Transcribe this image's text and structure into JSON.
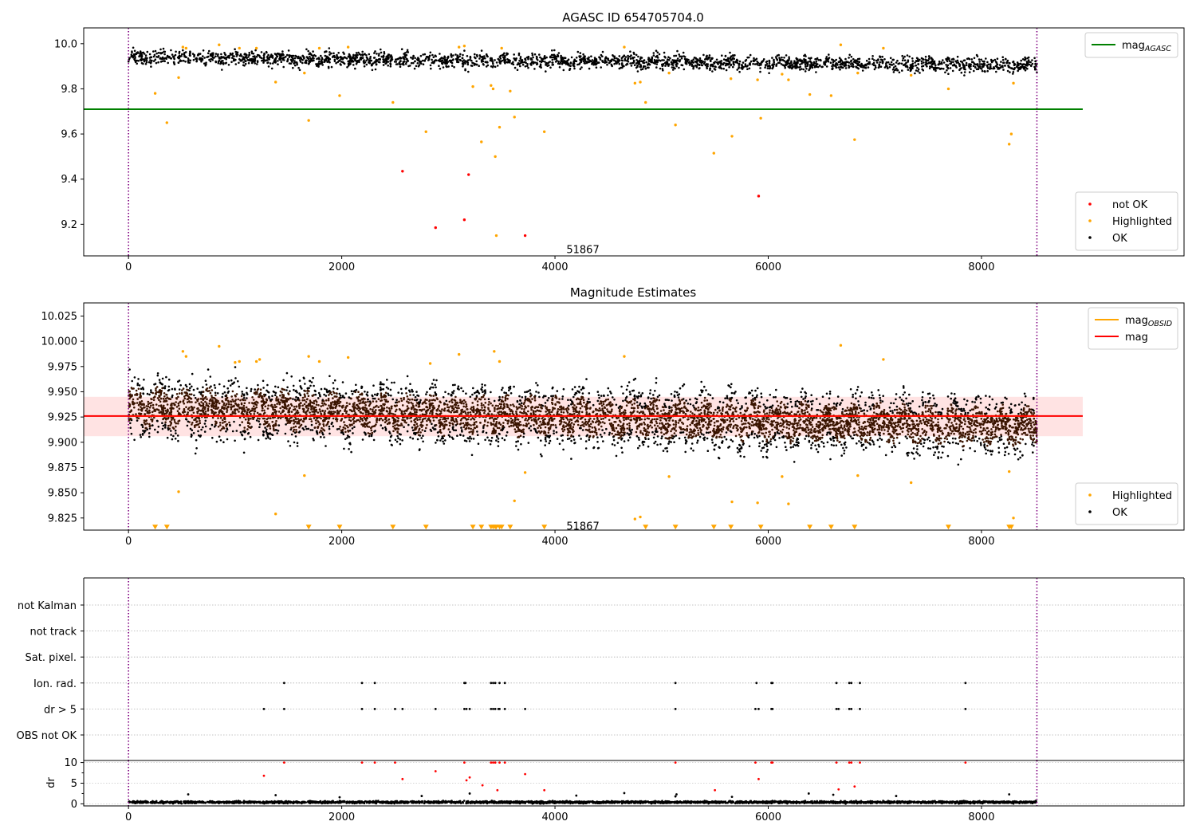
{
  "chart_data": [
    {
      "type": "scatter",
      "title": "AGASC ID 654705704.0",
      "xlabel": "",
      "ylabel": "",
      "xlim": [
        -420,
        9900
      ],
      "ylim": [
        9.06,
        10.07
      ],
      "xticks": [
        0,
        2000,
        4000,
        6000,
        8000
      ],
      "yticks": [
        9.2,
        9.4,
        9.6,
        9.8,
        10.0
      ],
      "ytick_decimals": 1,
      "vlines": [
        0,
        8520
      ],
      "annotation": {
        "text": "51867",
        "x": 4000,
        "y": 9.09
      },
      "hline": {
        "name": "mag",
        "label_sub": "AGASC",
        "y": 9.71,
        "x_range": [
          -420,
          8950
        ],
        "color": "#008000"
      },
      "legend_upper": {
        "position": "upper right",
        "entries": [
          {
            "label": "mag",
            "sub": "AGASC",
            "color": "#008000",
            "kind": "line"
          }
        ]
      },
      "legend_lower": {
        "position": "lower right",
        "entries": [
          {
            "label": "not OK",
            "color": "#ff0000",
            "kind": "dot"
          },
          {
            "label": "Highlighted",
            "color": "#ffa500",
            "kind": "dot"
          },
          {
            "label": "OK",
            "color": "#000000",
            "kind": "dot"
          }
        ]
      },
      "ok_band": {
        "x_range": [
          0,
          8520
        ],
        "trend_start": 9.94,
        "trend_end": 9.905,
        "spread": 0.055,
        "n": 2600,
        "color": "#000000"
      },
      "series": [
        {
          "name": "Highlighted",
          "color": "#ffa500",
          "x": [
            250,
            360,
            470,
            510,
            540,
            850,
            1040,
            1200,
            1380,
            1650,
            1690,
            1790,
            1980,
            2060,
            2480,
            2790,
            3100,
            3150,
            3230,
            3310,
            3400,
            3420,
            3440,
            3450,
            3480,
            3500,
            3580,
            3620,
            3900,
            4650,
            4750,
            4800,
            4850,
            5070,
            5130,
            5490,
            5650,
            5660,
            5900,
            5930,
            6130,
            6190,
            6390,
            6590,
            6680,
            6810,
            6840,
            7080,
            7340,
            7690,
            8260,
            8280,
            8300
          ],
          "y": [
            9.78,
            9.65,
            9.85,
            9.985,
            9.98,
            9.995,
            9.98,
            9.98,
            9.83,
            9.87,
            9.66,
            9.98,
            9.77,
            9.985,
            9.74,
            9.61,
            9.985,
            9.99,
            9.81,
            9.565,
            9.815,
            9.8,
            9.5,
            9.15,
            9.63,
            9.98,
            9.79,
            9.675,
            9.61,
            9.985,
            9.825,
            9.83,
            9.74,
            9.87,
            9.64,
            9.515,
            9.845,
            9.59,
            9.84,
            9.67,
            9.865,
            9.84,
            9.775,
            9.77,
            9.995,
            9.575,
            9.87,
            9.98,
            9.86,
            9.8,
            9.555,
            9.6,
            9.825
          ]
        },
        {
          "name": "not OK",
          "color": "#ff0000",
          "x": [
            2570,
            2880,
            3150,
            3190,
            3720,
            5910
          ],
          "y": [
            9.435,
            9.185,
            9.22,
            9.42,
            9.15,
            9.325
          ]
        }
      ]
    },
    {
      "type": "scatter",
      "title": "Magnitude Estimates",
      "xlabel": "",
      "ylabel": "",
      "xlim": [
        -420,
        9900
      ],
      "ylim": [
        9.813,
        10.038
      ],
      "xticks": [
        0,
        2000,
        4000,
        6000,
        8000
      ],
      "yticks": [
        9.825,
        9.85,
        9.875,
        9.9,
        9.925,
        9.95,
        9.975,
        10.0,
        10.025
      ],
      "ytick_decimals": 3,
      "vlines": [
        0,
        8520
      ],
      "annotation": {
        "text": "51867",
        "x": 4000,
        "y": 9.8175
      },
      "band": {
        "y_range": [
          9.906,
          9.945
        ],
        "x_range": [
          -420,
          8950
        ],
        "color": "#ff9999",
        "opacity": 0.28
      },
      "hline": {
        "name": "mag",
        "y": 9.926,
        "x_range": [
          -420,
          8950
        ],
        "color": "#ff0000"
      },
      "obsid_line": {
        "name": "mag",
        "label_sub": "OBSID",
        "y": 9.926,
        "x_range": [
          0,
          8520
        ],
        "color": "#ffa500"
      },
      "legend_upper": {
        "position": "upper right",
        "entries": [
          {
            "label": "mag",
            "sub": "OBSID",
            "color": "#ffa500",
            "kind": "line"
          },
          {
            "label": "mag",
            "sub": "",
            "color": "#ff0000",
            "kind": "line"
          }
        ]
      },
      "legend_lower": {
        "position": "lower right",
        "entries": [
          {
            "label": "Highlighted",
            "color": "#ffa500",
            "kind": "dot"
          },
          {
            "label": "OK",
            "color": "#000000",
            "kind": "dot"
          }
        ]
      },
      "ok_band": {
        "x_range": [
          0,
          8520
        ],
        "trend_start": 9.935,
        "trend_end": 9.915,
        "spread": 0.045,
        "n": 6500,
        "color": "#000000",
        "core_color": "#3a1400"
      },
      "series": [
        {
          "name": "Highlighted",
          "color": "#ffa500",
          "x": [
            470,
            510,
            540,
            850,
            1000,
            1040,
            1200,
            1230,
            1380,
            1650,
            1690,
            1790,
            2060,
            2830,
            3100,
            3430,
            3480,
            3720,
            3620,
            4650,
            4750,
            4800,
            5070,
            5660,
            5900,
            6130,
            6190,
            6680,
            6840,
            7080,
            7340,
            8260,
            8300
          ],
          "y": [
            9.851,
            9.99,
            9.985,
            9.995,
            9.979,
            9.98,
            9.98,
            9.982,
            9.829,
            9.867,
            9.985,
            9.98,
            9.984,
            9.978,
            9.987,
            9.99,
            9.98,
            9.87,
            9.842,
            9.985,
            9.824,
            9.826,
            9.866,
            9.841,
            9.84,
            9.866,
            9.839,
            9.996,
            9.867,
            9.982,
            9.86,
            9.871,
            9.825
          ]
        },
        {
          "name": "Highlighted (below range)",
          "color": "#ffa500",
          "marker": "triangle-down",
          "x": [
            250,
            360,
            1690,
            1980,
            2480,
            2790,
            3230,
            3310,
            3400,
            3420,
            3440,
            3450,
            3480,
            3500,
            3580,
            3900,
            4850,
            5130,
            5490,
            5650,
            5930,
            6390,
            6590,
            6810,
            7690,
            8260,
            8280
          ],
          "y": [
            9.816,
            9.816,
            9.816,
            9.816,
            9.816,
            9.816,
            9.816,
            9.816,
            9.816,
            9.816,
            9.816,
            9.816,
            9.816,
            9.816,
            9.816,
            9.816,
            9.816,
            9.816,
            9.816,
            9.816,
            9.816,
            9.816,
            9.816,
            9.816,
            9.816,
            9.816,
            9.816
          ]
        }
      ]
    },
    {
      "type": "scatter",
      "title": "",
      "xlabel": "",
      "ylabel": "",
      "xlim": [
        -420,
        9900
      ],
      "categories": [
        "not Kalman",
        "not track",
        "Sat. pixel.",
        "Ion. rad.",
        "dr > 5",
        "OBS not OK"
      ],
      "vlines": [
        0,
        8520
      ],
      "flag_points": {
        "Ion. rad.": [
          1460,
          2190,
          2310,
          3150,
          3160,
          3400,
          3420,
          3440,
          3480,
          3530,
          5130,
          5890,
          6030,
          6040,
          6640,
          6760,
          6780,
          6860,
          7850
        ],
        "dr > 5": [
          1270,
          1460,
          2190,
          2310,
          2500,
          2570,
          2880,
          3150,
          3170,
          3200,
          3400,
          3420,
          3440,
          3470,
          3480,
          3530,
          3720,
          5130,
          5880,
          5910,
          6030,
          6040,
          6640,
          6660,
          6760,
          6780,
          6860,
          7850
        ]
      }
    },
    {
      "type": "scatter",
      "title": "",
      "xlabel": "",
      "ylabel": "dr",
      "xlim": [
        -420,
        9900
      ],
      "ylim": [
        -0.5,
        10.5
      ],
      "xticks": [
        0,
        2000,
        4000,
        6000,
        8000
      ],
      "yticks": [
        0,
        5,
        10
      ],
      "ytick_decimals": 0,
      "vlines": [
        0,
        8520
      ],
      "ok_band": {
        "x_range": [
          0,
          8520
        ],
        "base": 0.4,
        "spread": 0.9,
        "n": 3000,
        "color": "#000000"
      },
      "series": [
        {
          "name": "not OK",
          "color": "#ff0000",
          "x": [
            1270,
            1460,
            2190,
            2310,
            2500,
            2570,
            2880,
            3150,
            3170,
            3200,
            3320,
            3400,
            3420,
            3440,
            3460,
            3480,
            3530,
            3720,
            3900,
            5130,
            5500,
            5880,
            5910,
            6030,
            6040,
            6640,
            6660,
            6760,
            6780,
            6810,
            6860,
            7850
          ],
          "y": [
            6.8,
            10,
            10,
            10,
            10,
            6,
            7.9,
            10,
            5.7,
            6.4,
            4.5,
            10,
            10,
            10,
            3.3,
            10,
            10,
            7.2,
            3.3,
            10,
            3.3,
            10,
            6,
            10,
            10,
            10,
            3.5,
            10,
            10,
            4.2,
            10,
            10
          ]
        },
        {
          "name": "OK outliers",
          "color": "#000000",
          "x": [
            560,
            1380,
            1980,
            2750,
            3200,
            4200,
            4650,
            5130,
            5140,
            5660,
            6380,
            6610,
            7200,
            8260
          ],
          "y": [
            2.3,
            2.1,
            1.6,
            1.9,
            2.5,
            2.0,
            2.6,
            1.8,
            2.3,
            1.7,
            2.5,
            2.2,
            1.9,
            2.3
          ]
        }
      ]
    }
  ]
}
